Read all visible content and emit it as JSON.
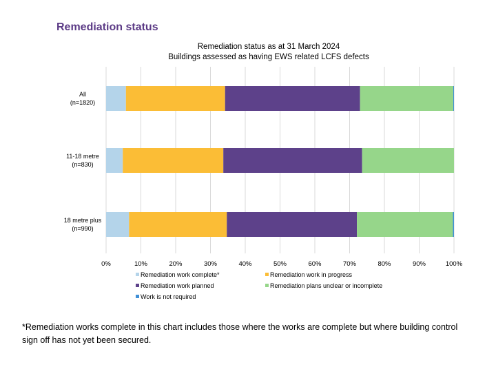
{
  "page": {
    "heading": "Remediation status",
    "footnote_star": "*",
    "footnote": "Remediation works complete in this chart includes those where the works are complete but where building control sign off has not yet been secured."
  },
  "chart_data": {
    "type": "bar",
    "orientation": "horizontal",
    "stacked": "percent",
    "title_lines": [
      "Remediation status as at 31 March 2024",
      "Buildings assessed as having EWS related LCFS defects"
    ],
    "categories": [
      [
        "All",
        "(n=1820)"
      ],
      [
        "11-18 metre",
        "(n=830)"
      ],
      [
        "18 metre plus",
        "(n=990)"
      ]
    ],
    "xlim": [
      0,
      100
    ],
    "xticks": [
      "0%",
      "10%",
      "20%",
      "30%",
      "40%",
      "50%",
      "60%",
      "70%",
      "80%",
      "90%",
      "100%"
    ],
    "grid": true,
    "legend_position": "bottom",
    "series": [
      {
        "name": "Remediation work complete*",
        "color": "#b4d4ea",
        "values": [
          5.7,
          4.8,
          6.6
        ]
      },
      {
        "name": "Remediation work in progress",
        "color": "#fbbd36",
        "values": [
          28.5,
          28.9,
          28.1
        ]
      },
      {
        "name": "Remediation work planned",
        "color": "#5d418a",
        "values": [
          38.8,
          39.9,
          37.4
        ]
      },
      {
        "name": "Remediation plans unclear or incomplete",
        "color": "#96d68a",
        "values": [
          26.8,
          26.4,
          27.6
        ]
      },
      {
        "name": "Work is not required",
        "color": "#3f8fd6",
        "values": [
          0.2,
          0.0,
          0.3
        ]
      }
    ]
  }
}
